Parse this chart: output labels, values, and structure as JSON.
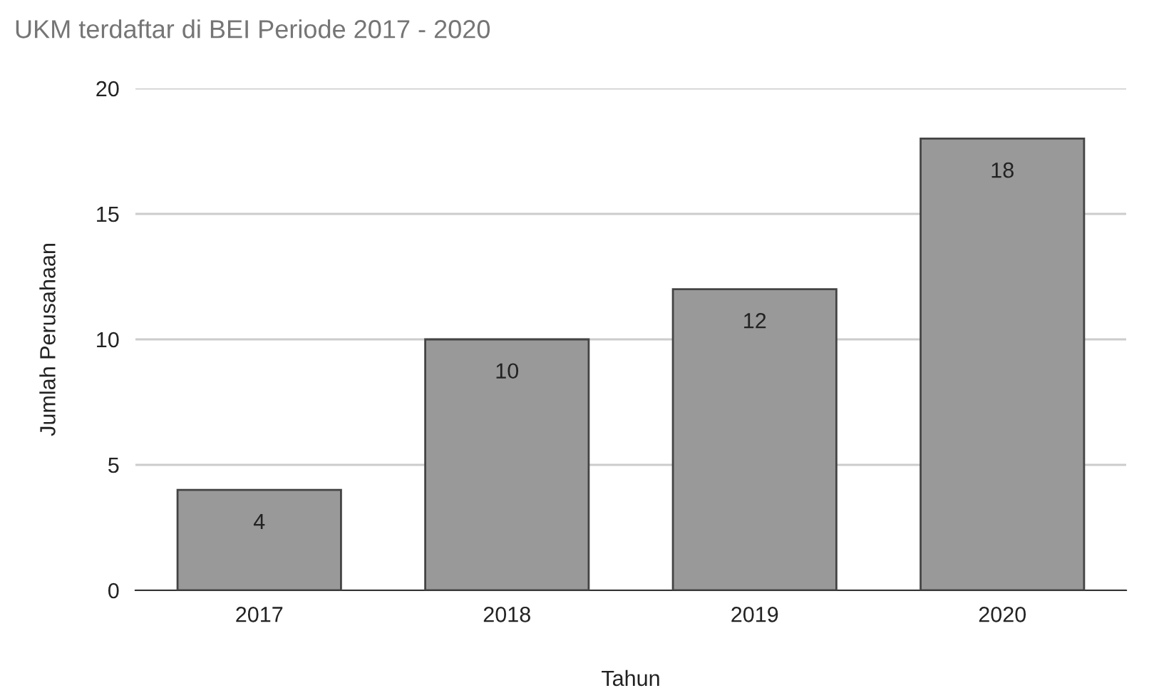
{
  "chart_data": {
    "type": "bar",
    "title": "UKM terdaftar di BEI Periode 2017 - 2020",
    "xlabel": "Tahun",
    "ylabel": "Jumlah Perusahaan",
    "categories": [
      "2017",
      "2018",
      "2019",
      "2020"
    ],
    "values": [
      4,
      10,
      12,
      18
    ],
    "color": "#999999",
    "ylim": [
      0,
      20
    ],
    "yticks": [
      0,
      5,
      10,
      15,
      20
    ],
    "grid": "y",
    "data_labels": true,
    "legend": false
  }
}
